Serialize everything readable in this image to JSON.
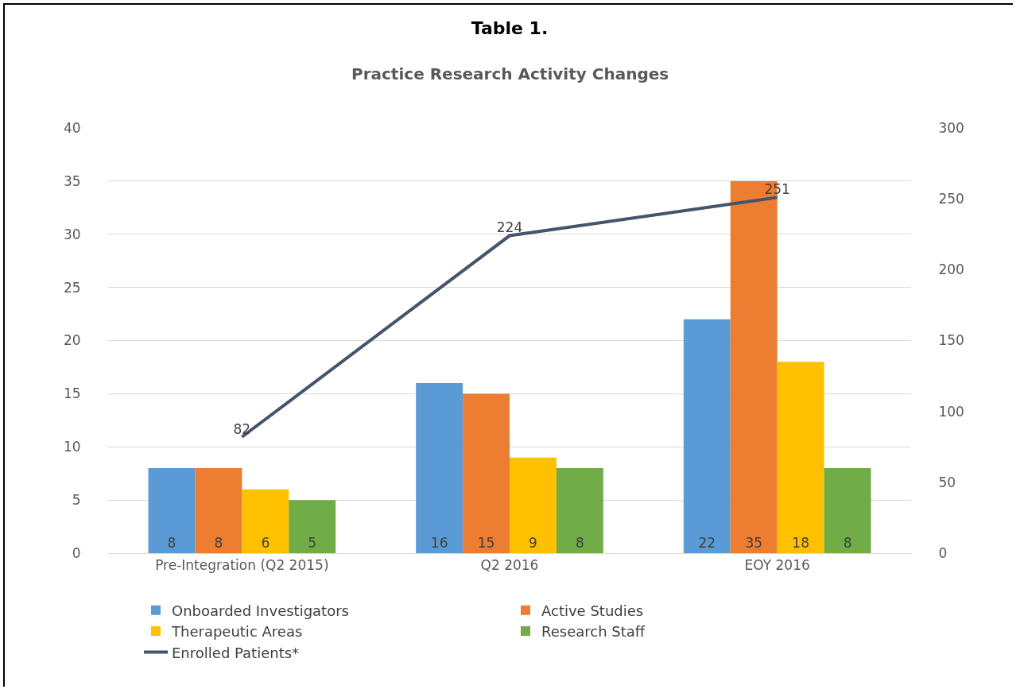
{
  "chart_data": {
    "type": "bar",
    "title": "Table 1.",
    "subtitle": "Practice Research Activity Changes",
    "categories": [
      "Pre-Integration (Q2 2015)",
      "Q2 2016",
      "EOY 2016"
    ],
    "series": [
      {
        "name": "Onboarded Investigators",
        "color": "#5b9bd5",
        "values": [
          8,
          16,
          22
        ]
      },
      {
        "name": "Active Studies",
        "color": "#ed7d31",
        "values": [
          8,
          15,
          35
        ]
      },
      {
        "name": "Therapeutic Areas",
        "color": "#ffc000",
        "values": [
          6,
          9,
          18
        ]
      },
      {
        "name": "Research Staff",
        "color": "#70ad47",
        "values": [
          5,
          8,
          8
        ]
      },
      {
        "name": "Enrolled Patients*",
        "color": "#44546a",
        "type": "line",
        "axis": "y2",
        "values": [
          82,
          224,
          251
        ]
      }
    ],
    "ylim": [
      0,
      40
    ],
    "yticks": [
      0,
      5,
      10,
      15,
      20,
      25,
      30,
      35,
      40
    ],
    "y2lim": [
      0,
      300
    ],
    "y2ticks": [
      0,
      50,
      100,
      150,
      200,
      250,
      300
    ],
    "grid": "y",
    "legend": "bottom",
    "data_labels": true,
    "marker": "none"
  }
}
